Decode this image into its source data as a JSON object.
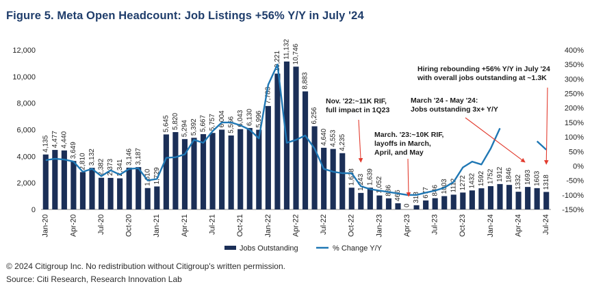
{
  "figure": {
    "title": "Figure 5. Meta Open Headcount: Job Listings +56% Y/Y in July '24",
    "copyright": "© 2024 Citigroup Inc. No redistribution without Citigroup's written permission.",
    "source": "Source: Citi Research, Research Innovation Lab"
  },
  "colors": {
    "bars": "#1b2f57",
    "line": "#1f77b4",
    "arrow": "#e23b2e",
    "title": "#1f3d6b"
  },
  "chart_data": {
    "type": "bar",
    "title": "Figure 5. Meta Open Headcount: Job Listings +56% Y/Y in July '24",
    "y_left_range": [
      0,
      12000
    ],
    "y_right_range": [
      -150,
      400
    ],
    "y_left_ticks": [
      "0",
      "2,000",
      "4,000",
      "6,000",
      "8,000",
      "10,000",
      "12,000"
    ],
    "y_right_ticks": [
      "-150%",
      "-100%",
      "-50%",
      "0%",
      "50%",
      "100%",
      "150%",
      "200%",
      "250%",
      "300%",
      "350%",
      "400%"
    ],
    "x_tick_labels": [
      "Jan-20",
      "Apr-20",
      "Jul-20",
      "Oct-20",
      "Jan-21",
      "Apr-21",
      "Jul-21",
      "Oct-21",
      "Jan-22",
      "Apr-22",
      "Jul-22",
      "Oct-22",
      "Jan-23",
      "Apr-23",
      "Jul-23",
      "Oct-23",
      "Jan-24",
      "Apr-24",
      "Jul-24"
    ],
    "series": [
      {
        "name": "Jobs Outstanding",
        "type": "bar",
        "axis": "left",
        "values": [
          4135,
          4477,
          4440,
          3649,
          2810,
          3132,
          2382,
          2373,
          2341,
          3146,
          3187,
          1610,
          1729,
          5645,
          5820,
          5294,
          5392,
          5667,
          5757,
          6004,
          5566,
          6043,
          6130,
          5996,
          7783,
          10221,
          11132,
          10746,
          8883,
          6256,
          4640,
          4553,
          4235,
          1638,
          1243,
          1639,
          1052,
          836,
          466,
          0,
          318,
          677,
          846,
          1003,
          1112,
          1272,
          1432,
          1592,
          1752,
          1912,
          1846,
          1332,
          1693,
          1603,
          1318
        ],
        "labels": [
          "4,135",
          "4,477",
          "4,440",
          "3,649",
          "2,810",
          "3,132",
          "2,382",
          "2,373",
          "2,341",
          "3,146",
          "3,187",
          "1,610",
          "1,729",
          "5,645",
          "5,820",
          "5,294",
          "5,392",
          "5,667",
          "5,757",
          "6,004",
          "5,566",
          "6,043",
          "6,130",
          "5,996",
          "7,783",
          "10,221",
          "11,132",
          "10,746",
          "8,883",
          "6,256",
          "4,640",
          "4,553",
          "4,235",
          "1,638",
          "1,243",
          "1,639",
          "1,052",
          "836",
          "466",
          "0",
          "318",
          "677",
          "846",
          "1003",
          "1112",
          "1272",
          "1432",
          "1592",
          "1752",
          "1912",
          "1846",
          "1332",
          "1693",
          "1603",
          "1318"
        ]
      },
      {
        "name": "% Change Y/Y",
        "type": "line",
        "axis": "right",
        "values": [
          20,
          25,
          22,
          15,
          -20,
          -10,
          -35,
          -15,
          -30,
          -10,
          -8,
          -50,
          -45,
          28,
          30,
          40,
          90,
          80,
          120,
          150,
          150,
          140,
          125,
          95,
          280,
          350,
          80,
          90,
          105,
          60,
          -10,
          -20,
          -25,
          -25,
          -70,
          -80,
          -85,
          -90,
          -95,
          -100,
          -100,
          -92,
          -85,
          -75,
          -55,
          -5,
          15,
          5,
          60,
          130,
          null,
          null,
          null,
          85,
          56
        ]
      }
    ],
    "legend": [
      "Jobs Outstanding",
      "% Change Y/Y"
    ],
    "annotations": [
      {
        "lines": [
          "Hiring rebounding +56% Y/Y in July '24",
          "with overall jobs outstanding at ~1.3K"
        ],
        "target_index": 54
      },
      {
        "lines": [
          "March '24 - May '24:",
          "Jobs outstanding 3x+ Y/Y"
        ],
        "target_index": 52
      },
      {
        "lines": [
          "Nov. '22:~11K RIF,",
          "full impact in 1Q23"
        ],
        "target_index": 34
      },
      {
        "lines": [
          "March. '23:~10K RIF,",
          "layoffs in March,",
          "April, and May"
        ],
        "target_index": 39
      }
    ]
  }
}
